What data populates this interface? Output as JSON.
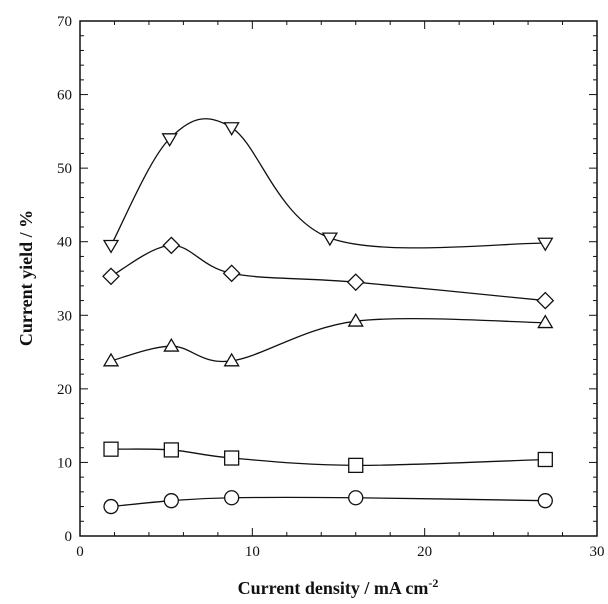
{
  "chart_data": {
    "type": "line",
    "xlabel": "Current density / mA cm",
    "xlabel_superscript": "-2",
    "ylabel": "Current yield / %",
    "xlim": [
      0,
      30
    ],
    "ylim": [
      0,
      70
    ],
    "x_ticks": [
      "0",
      "10",
      "20",
      "30"
    ],
    "y_ticks": [
      "0",
      "10",
      "20",
      "30",
      "40",
      "50",
      "60",
      "70"
    ],
    "grid": false,
    "legend": "none",
    "series": [
      {
        "marker": "triangle-down",
        "x": [
          1.8,
          5.2,
          8.8,
          14.5,
          27.0
        ],
        "y": [
          39.5,
          54.0,
          55.5,
          40.5,
          39.8
        ]
      },
      {
        "marker": "diamond",
        "x": [
          1.8,
          5.3,
          8.8,
          16.0,
          27.0
        ],
        "y": [
          35.3,
          39.5,
          35.7,
          34.5,
          32.0
        ]
      },
      {
        "marker": "triangle-up",
        "x": [
          1.8,
          5.3,
          8.8,
          16.0,
          27.0
        ],
        "y": [
          23.8,
          25.8,
          23.8,
          29.2,
          29.0
        ]
      },
      {
        "marker": "square",
        "x": [
          1.8,
          5.3,
          8.8,
          16.0,
          27.0
        ],
        "y": [
          11.8,
          11.7,
          10.6,
          9.6,
          10.4
        ]
      },
      {
        "marker": "circle",
        "x": [
          1.8,
          5.3,
          8.8,
          16.0,
          27.0
        ],
        "y": [
          4.0,
          4.8,
          5.2,
          5.2,
          4.8
        ]
      }
    ]
  }
}
